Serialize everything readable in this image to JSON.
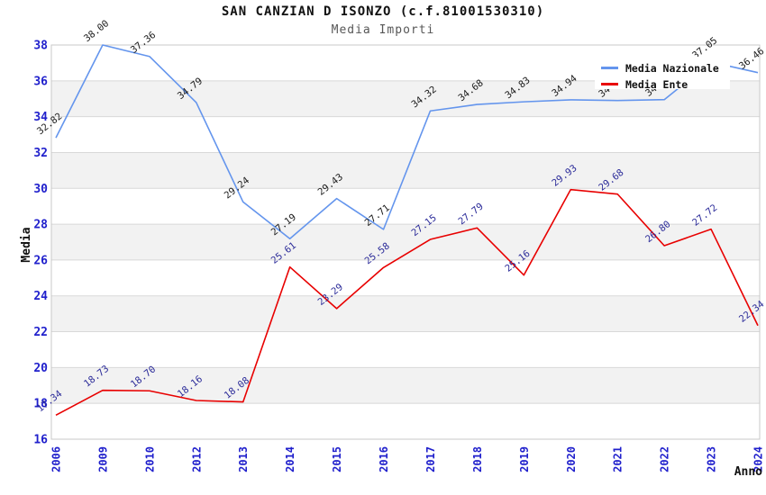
{
  "header": {
    "title": "SAN CANZIAN D ISONZO (c.f.81001530310)",
    "subtitle": "Media Importi"
  },
  "colors": {
    "axis_tick_blue": "#2020cc",
    "grid_line": "#d8d8d8",
    "band_gray": "#f2f2f2",
    "plot_border": "#c8c8c8",
    "title_black": "#111111",
    "subtitle_gray": "#575757",
    "nazionale_line": "#6495ED",
    "ente_line": "#e80000",
    "nazionale_label": "#1a1a1a",
    "ente_label": "#2b2b99"
  },
  "legend": {
    "items": [
      {
        "label": "Media Nazionale",
        "color": "#6495ED"
      },
      {
        "label": "Media Ente",
        "color": "#e80000"
      }
    ]
  },
  "chart_data": {
    "type": "line",
    "title": "SAN CANZIAN D ISONZO (c.f.81001530310)",
    "subtitle": "Media Importi",
    "xlabel": "Anno",
    "ylabel": "Media",
    "ylim": [
      16,
      38
    ],
    "yticks": [
      16,
      18,
      20,
      22,
      24,
      26,
      28,
      30,
      32,
      34,
      36,
      38
    ],
    "grid": true,
    "alternating_bands": true,
    "legend_position": "top-right",
    "x": [
      "2006",
      "2009",
      "2010",
      "2012",
      "2013",
      "2014",
      "2015",
      "2016",
      "2017",
      "2018",
      "2019",
      "2020",
      "2021",
      "2022",
      "2023",
      "2024"
    ],
    "series": [
      {
        "name": "Media Nazionale",
        "color": "#6495ED",
        "label_color": "#1a1a1a",
        "values": [
          32.82,
          38.0,
          37.36,
          34.79,
          29.24,
          27.19,
          29.43,
          27.71,
          34.32,
          34.68,
          34.83,
          34.94,
          34.9,
          34.95,
          37.05,
          36.46
        ],
        "hidden_label_indexes": [
          12,
          13
        ]
      },
      {
        "name": "Media Ente",
        "color": "#e80000",
        "label_color": "#2b2b99",
        "values": [
          17.34,
          18.73,
          18.7,
          18.16,
          18.08,
          25.61,
          23.29,
          25.58,
          27.15,
          27.79,
          25.16,
          29.93,
          29.68,
          26.8,
          27.72,
          22.34
        ],
        "hidden_label_indexes": []
      }
    ]
  }
}
